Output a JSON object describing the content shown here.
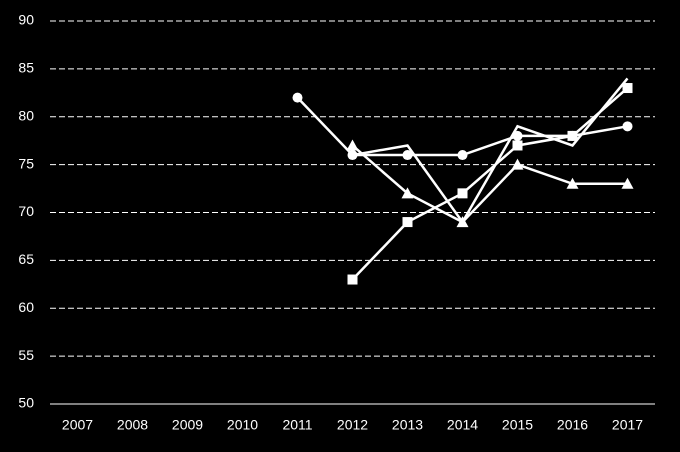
{
  "chart_data": {
    "type": "line",
    "categories": [
      "2007",
      "2008",
      "2009",
      "2010",
      "2011",
      "2012",
      "2013",
      "2014",
      "2015",
      "2016",
      "2017"
    ],
    "series": [
      {
        "marker": "circle",
        "color": "#ffffff",
        "values": [
          null,
          null,
          null,
          null,
          82,
          76,
          76,
          76,
          78,
          78,
          79
        ]
      },
      {
        "marker": "triangle",
        "color": "#ffffff",
        "values": [
          null,
          null,
          null,
          null,
          null,
          77,
          72,
          69,
          75,
          73,
          73
        ]
      },
      {
        "marker": "square",
        "color": "#ffffff",
        "values": [
          null,
          null,
          null,
          null,
          null,
          63,
          69,
          72,
          77,
          78,
          83
        ]
      },
      {
        "marker": "none",
        "color": "#ffffff",
        "values": [
          null,
          null,
          null,
          null,
          null,
          76,
          77,
          69,
          79,
          77,
          84
        ]
      }
    ],
    "ylim": [
      50,
      90
    ],
    "yticks": [
      50,
      55,
      60,
      65,
      70,
      75,
      80,
      85,
      90
    ],
    "grid": true
  }
}
